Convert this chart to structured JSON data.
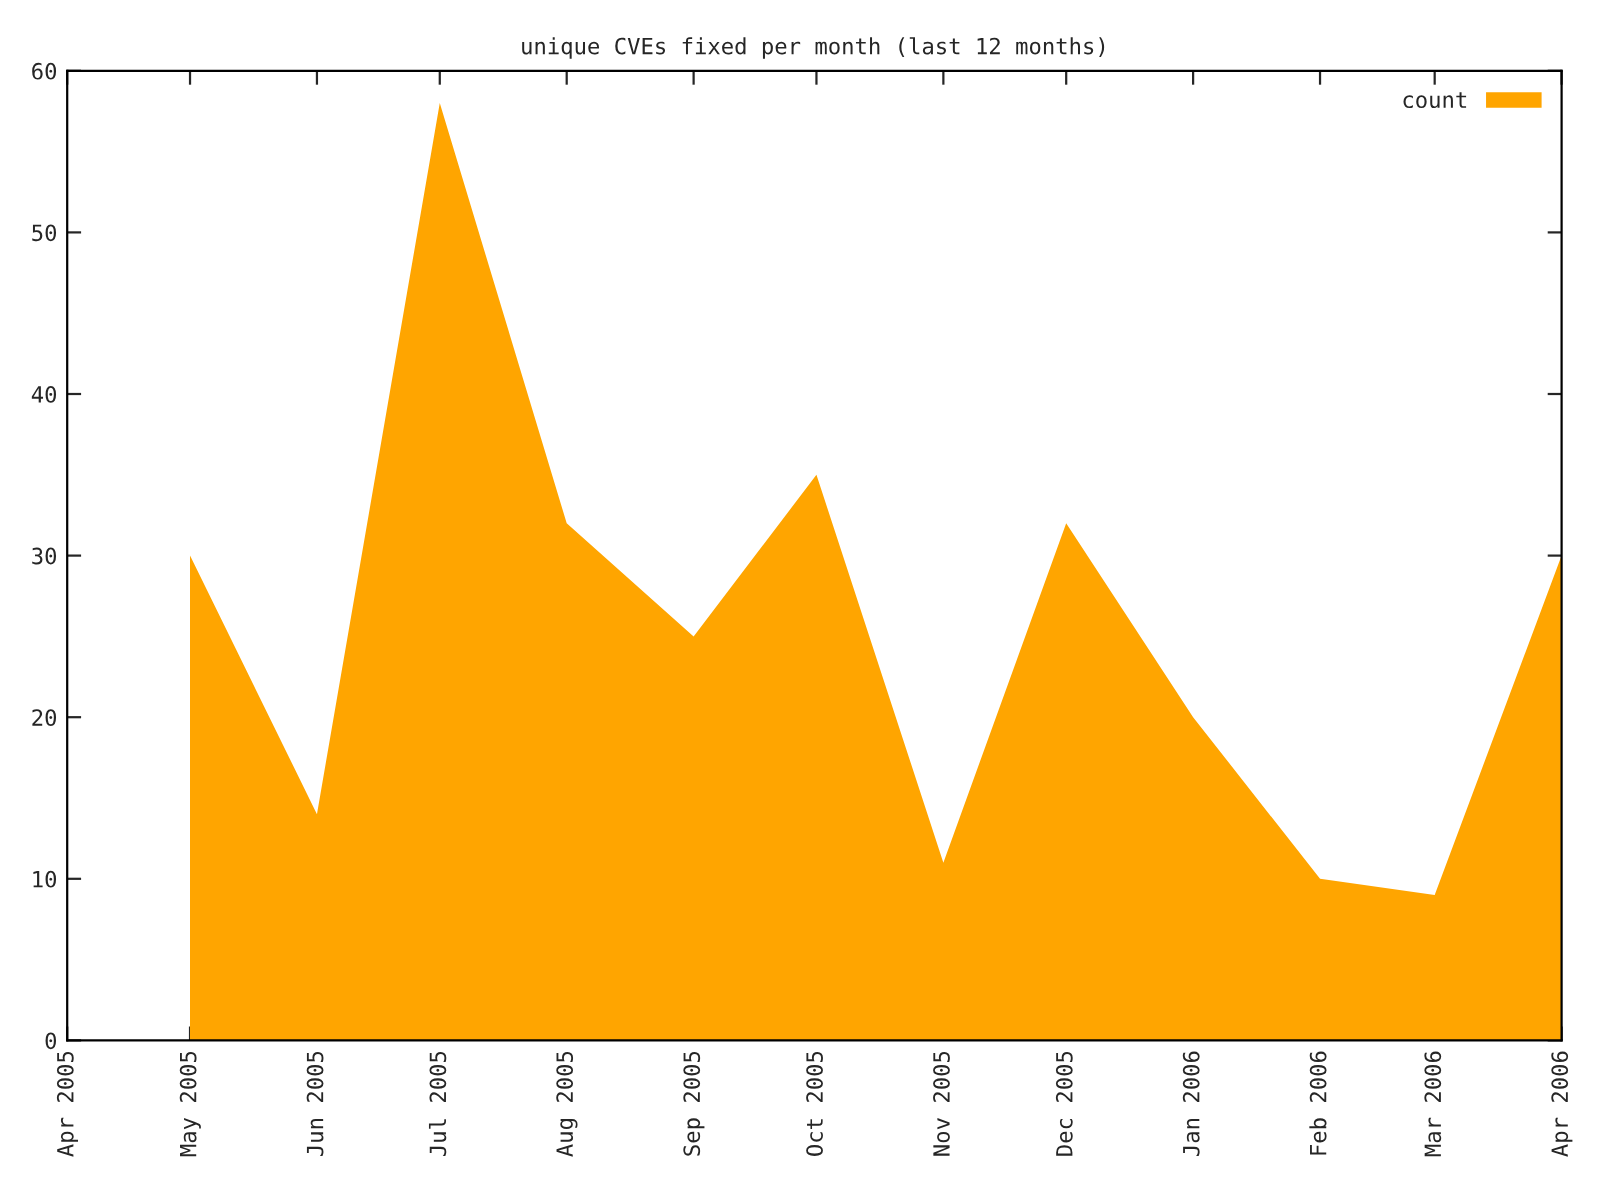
{
  "chart_data": {
    "type": "area",
    "title": "unique CVEs fixed per month (last 12 months)",
    "x": [
      "2005-05",
      "2005-06",
      "2005-07",
      "2005-08",
      "2005-09",
      "2005-10",
      "2005-11",
      "2005-12",
      "2006-01",
      "2006-02",
      "2006-03",
      "2006-04"
    ],
    "series": [
      {
        "name": "count",
        "color": "#ffa500",
        "values": [
          30,
          14,
          58,
          32,
          25,
          35,
          11,
          32,
          20,
          10,
          9,
          30
        ]
      }
    ],
    "xlim": [
      "2005-04",
      "2006-04"
    ],
    "xticks": [
      {
        "value": "2005-04",
        "label": "Apr 2005"
      },
      {
        "value": "2005-05",
        "label": "May 2005"
      },
      {
        "value": "2005-06",
        "label": "Jun 2005"
      },
      {
        "value": "2005-07",
        "label": "Jul 2005"
      },
      {
        "value": "2005-08",
        "label": "Aug 2005"
      },
      {
        "value": "2005-09",
        "label": "Sep 2005"
      },
      {
        "value": "2005-10",
        "label": "Oct 2005"
      },
      {
        "value": "2005-11",
        "label": "Nov 2005"
      },
      {
        "value": "2005-12",
        "label": "Dec 2005"
      },
      {
        "value": "2006-01",
        "label": "Jan 2006"
      },
      {
        "value": "2006-02",
        "label": "Feb 2006"
      },
      {
        "value": "2006-03",
        "label": "Mar 2006"
      },
      {
        "value": "2006-04",
        "label": "Apr 2006"
      }
    ],
    "ylim": [
      0,
      60
    ],
    "yticks": [
      0,
      10,
      20,
      30,
      40,
      50,
      60
    ],
    "grid": false,
    "legend": "top right"
  }
}
